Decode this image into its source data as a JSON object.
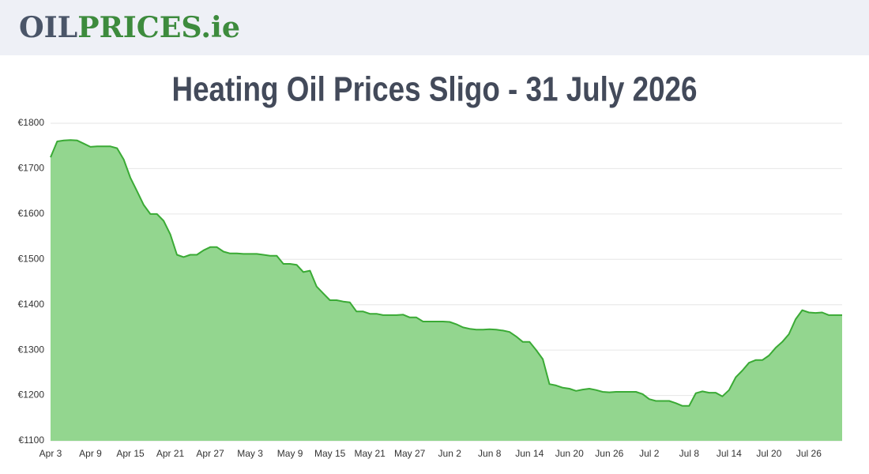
{
  "header": {
    "logo": [
      "OIL",
      "PRICES.ie"
    ]
  },
  "chart_data": {
    "type": "area",
    "title": "Heating Oil Prices Sligo - 31 July 2026",
    "categories": [
      "Apr 3",
      null,
      null,
      null,
      null,
      null,
      "Apr 9",
      null,
      null,
      null,
      null,
      null,
      "Apr 15",
      null,
      null,
      null,
      null,
      null,
      "Apr 21",
      null,
      null,
      null,
      null,
      null,
      "Apr 27",
      null,
      null,
      null,
      null,
      null,
      "May 3",
      null,
      null,
      null,
      null,
      null,
      "May 9",
      null,
      null,
      null,
      null,
      null,
      "May 15",
      null,
      null,
      null,
      null,
      null,
      "May 21",
      null,
      null,
      null,
      null,
      null,
      "May 27",
      null,
      null,
      null,
      null,
      null,
      "Jun 2",
      null,
      null,
      null,
      null,
      null,
      "Jun 8",
      null,
      null,
      null,
      null,
      null,
      "Jun 14",
      null,
      null,
      null,
      null,
      null,
      "Jun 20",
      null,
      null,
      null,
      null,
      null,
      "Jun 26",
      null,
      null,
      null,
      null,
      null,
      "Jul 2",
      null,
      null,
      null,
      null,
      null,
      "Jul 8",
      null,
      null,
      null,
      null,
      null,
      "Jul 14",
      null,
      null,
      null,
      null,
      null,
      "Jul 20",
      null,
      null,
      null,
      null,
      null,
      "Jul 26",
      null,
      null,
      null,
      null,
      null
    ],
    "series": [
      {
        "name": "Heating Oil Price",
        "color": "#3aaa35",
        "fill": "#93d68f",
        "values": [
          1725,
          1760,
          1762,
          1763,
          1762,
          1755,
          1748,
          1749,
          1749,
          1749,
          1745,
          1720,
          1680,
          1650,
          1620,
          1600,
          1600,
          1585,
          1555,
          1510,
          1505,
          1510,
          1510,
          1520,
          1527,
          1527,
          1517,
          1513,
          1513,
          1512,
          1512,
          1512,
          1510,
          1508,
          1508,
          1490,
          1490,
          1488,
          1472,
          1475,
          1440,
          1425,
          1410,
          1410,
          1407,
          1405,
          1385,
          1385,
          1380,
          1380,
          1377,
          1377,
          1377,
          1378,
          1372,
          1372,
          1363,
          1363,
          1363,
          1363,
          1362,
          1357,
          1350,
          1347,
          1345,
          1345,
          1346,
          1345,
          1343,
          1340,
          1330,
          1318,
          1318,
          1300,
          1280,
          1225,
          1222,
          1217,
          1215,
          1210,
          1213,
          1215,
          1212,
          1208,
          1207,
          1208,
          1208,
          1208,
          1208,
          1203,
          1192,
          1188,
          1188,
          1188,
          1183,
          1177,
          1177,
          1205,
          1209,
          1206,
          1206,
          1198,
          1212,
          1240,
          1255,
          1272,
          1278,
          1278,
          1288,
          1305,
          1318,
          1335,
          1368,
          1388,
          1383,
          1382,
          1383,
          1377,
          1377,
          1377
        ]
      }
    ],
    "ylim": [
      1100,
      1800
    ],
    "yticks": [
      {
        "value": 1100,
        "label": "€1100"
      },
      {
        "value": 1200,
        "label": "€1200"
      },
      {
        "value": 1300,
        "label": "€1300"
      },
      {
        "value": 1400,
        "label": "€1400"
      },
      {
        "value": 1500,
        "label": "€1500"
      },
      {
        "value": 1600,
        "label": "€1600"
      },
      {
        "value": 1700,
        "label": "€1700"
      },
      {
        "value": 1800,
        "label": "€1800"
      }
    ],
    "grid": true
  }
}
